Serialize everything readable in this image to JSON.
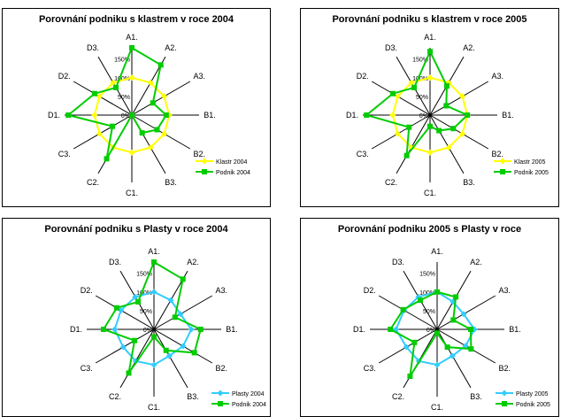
{
  "chart_data": [
    {
      "type": "radar",
      "title": "Porovnání podniku s klastrem v roce 2004",
      "categories": [
        "A1.",
        "A2.",
        "A3.",
        "B1.",
        "B2.",
        "B3.",
        "C1.",
        "C2.",
        "C3.",
        "D1.",
        "D2.",
        "D3."
      ],
      "tick_labels": [
        "0%",
        "50%",
        "100%",
        "150%"
      ],
      "rmax": 1.8,
      "series": [
        {
          "name": "Klastr 2004",
          "color": "#ffff00",
          "marker": "diamond",
          "values": [
            1.0,
            1.0,
            1.0,
            1.0,
            1.0,
            1.0,
            1.0,
            1.0,
            1.0,
            1.0,
            1.0,
            1.0
          ]
        },
        {
          "name": "Podnik 2004",
          "color": "#00cc00",
          "marker": "square",
          "values": [
            1.8,
            1.55,
            0.65,
            0.92,
            0.78,
            0.55,
            0.0,
            1.35,
            0.6,
            1.7,
            1.15,
            0.85
          ]
        }
      ]
    },
    {
      "type": "radar",
      "title": "Porovnání podniku s klastrem v roce 2005",
      "categories": [
        "A1.",
        "A2.",
        "A3.",
        "B1.",
        "B2.",
        "B3.",
        "C1.",
        "C2.",
        "C3.",
        "D1.",
        "D2.",
        "D3."
      ],
      "tick_labels": [
        "0%",
        "50%",
        "100%",
        "150%"
      ],
      "rmax": 1.8,
      "series": [
        {
          "name": "Klastr 2005",
          "color": "#ffff00",
          "marker": "diamond",
          "values": [
            1.0,
            1.0,
            1.0,
            1.0,
            1.0,
            1.0,
            1.0,
            1.0,
            1.0,
            1.0,
            1.0,
            1.0
          ]
        },
        {
          "name": "Podnik 2005",
          "color": "#00cc00",
          "marker": "square",
          "values": [
            1.7,
            0.9,
            0.5,
            1.0,
            0.72,
            0.48,
            0.3,
            1.25,
            0.65,
            1.7,
            1.15,
            0.85
          ]
        }
      ]
    },
    {
      "type": "radar",
      "title": "Porovnání podniku s Plasty v roce 2004",
      "categories": [
        "A1.",
        "A2.",
        "A3.",
        "B1.",
        "B2.",
        "B3.",
        "C1.",
        "C2.",
        "C3.",
        "D1.",
        "D2.",
        "D3."
      ],
      "tick_labels": [
        "0%",
        "50%",
        "100%",
        "150%"
      ],
      "rmax": 1.8,
      "series": [
        {
          "name": "Plasty 2004",
          "color": "#33ccff",
          "marker": "diamond",
          "values": [
            1.0,
            0.9,
            0.82,
            1.0,
            0.9,
            0.82,
            0.95,
            0.98,
            0.95,
            1.05,
            1.02,
            1.0
          ]
        },
        {
          "name": "Podnik 2004",
          "color": "#00cc00",
          "marker": "square",
          "values": [
            1.8,
            1.55,
            0.65,
            1.25,
            1.25,
            0.65,
            0.2,
            1.35,
            0.6,
            1.35,
            1.15,
            0.85
          ]
        }
      ]
    },
    {
      "type": "radar",
      "title": "Porovnání podniku 2005 s Plasty v roce",
      "categories": [
        "A1.",
        "A2.",
        "A3.",
        "B1.",
        "B2.",
        "B3.",
        "C1.",
        "C2.",
        "C3.",
        "D1.",
        "D2.",
        "D3."
      ],
      "tick_labels": [
        "0%",
        "50%",
        "100%",
        "150%"
      ],
      "rmax": 1.8,
      "series": [
        {
          "name": "Plasty 2005",
          "color": "#33ccff",
          "marker": "diamond",
          "values": [
            1.0,
            0.85,
            0.82,
            1.0,
            0.88,
            0.82,
            0.95,
            0.98,
            0.95,
            1.1,
            1.02,
            1.0
          ]
        },
        {
          "name": "Podnik 2005",
          "color": "#00cc00",
          "marker": "square",
          "values": [
            1.0,
            1.0,
            0.5,
            0.9,
            1.05,
            0.55,
            0.1,
            1.45,
            0.7,
            1.25,
            1.05,
            0.9
          ]
        }
      ]
    }
  ]
}
